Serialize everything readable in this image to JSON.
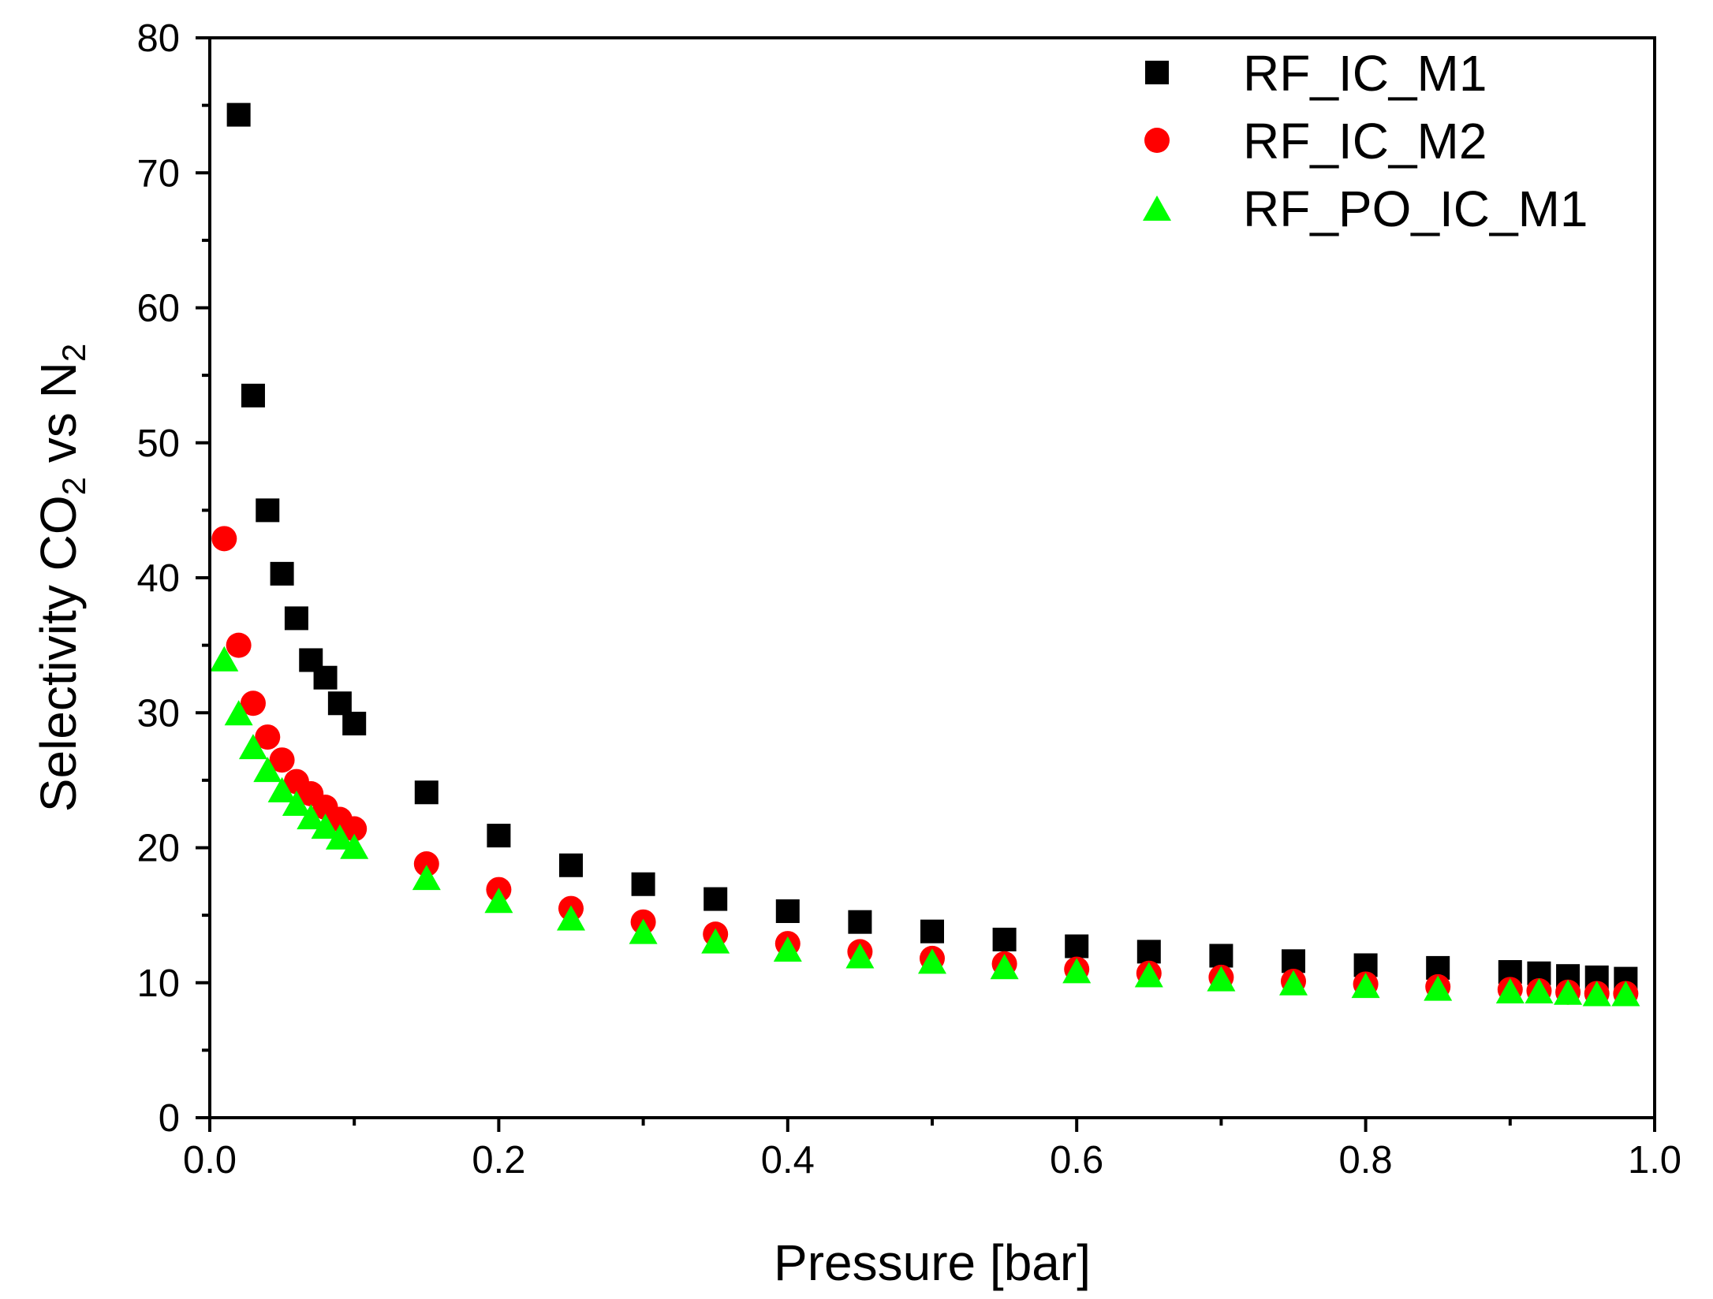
{
  "chart_data": {
    "type": "scatter",
    "title": "",
    "xlabel": "Pressure [bar]",
    "ylabel": {
      "prefix": "Selectivity CO",
      "sub1": "2",
      "middle": " vs N",
      "sub2": "2"
    },
    "xlim": [
      0.0,
      1.0
    ],
    "ylim": [
      0,
      80
    ],
    "xticks": [
      0.0,
      0.2,
      0.4,
      0.6,
      0.8,
      1.0
    ],
    "xtick_labels": [
      "0.0",
      "0.2",
      "0.4",
      "0.6",
      "0.8",
      "1.0"
    ],
    "yticks": [
      0,
      10,
      20,
      30,
      40,
      50,
      60,
      70,
      80
    ],
    "ytick_labels": [
      "0",
      "10",
      "20",
      "30",
      "40",
      "50",
      "60",
      "70",
      "80"
    ],
    "legend_position": "top-right",
    "grid": false,
    "series": [
      {
        "name": "RF_IC_M1",
        "marker": "square",
        "color": "#000000",
        "x": [
          0.02,
          0.03,
          0.04,
          0.05,
          0.06,
          0.07,
          0.08,
          0.09,
          0.1,
          0.15,
          0.2,
          0.25,
          0.3,
          0.35,
          0.4,
          0.45,
          0.5,
          0.55,
          0.6,
          0.65,
          0.7,
          0.75,
          0.8,
          0.85,
          0.9,
          0.92,
          0.94,
          0.96,
          0.98
        ],
        "y": [
          74.3,
          53.5,
          45.0,
          40.3,
          37.0,
          33.9,
          32.6,
          30.7,
          29.2,
          24.1,
          20.9,
          18.7,
          17.3,
          16.2,
          15.3,
          14.5,
          13.8,
          13.2,
          12.7,
          12.3,
          12.0,
          11.6,
          11.3,
          11.1,
          10.8,
          10.7,
          10.5,
          10.4,
          10.3
        ]
      },
      {
        "name": "RF_IC_M2",
        "marker": "circle",
        "color": "#ff0000",
        "x": [
          0.01,
          0.02,
          0.03,
          0.04,
          0.05,
          0.06,
          0.07,
          0.08,
          0.09,
          0.1,
          0.15,
          0.2,
          0.25,
          0.3,
          0.35,
          0.4,
          0.45,
          0.5,
          0.55,
          0.6,
          0.65,
          0.7,
          0.75,
          0.8,
          0.85,
          0.9,
          0.92,
          0.94,
          0.96,
          0.98
        ],
        "y": [
          42.9,
          35.0,
          30.7,
          28.2,
          26.5,
          24.9,
          24.0,
          23.0,
          22.1,
          21.4,
          18.8,
          16.9,
          15.5,
          14.5,
          13.6,
          12.9,
          12.3,
          11.8,
          11.4,
          11.0,
          10.7,
          10.4,
          10.1,
          9.9,
          9.7,
          9.5,
          9.4,
          9.3,
          9.2,
          9.2
        ]
      },
      {
        "name": "RF_PO_IC_M1",
        "marker": "triangle",
        "color": "#00ff00",
        "x": [
          0.01,
          0.02,
          0.03,
          0.04,
          0.05,
          0.06,
          0.07,
          0.08,
          0.09,
          0.1,
          0.15,
          0.2,
          0.25,
          0.3,
          0.35,
          0.4,
          0.45,
          0.5,
          0.55,
          0.6,
          0.65,
          0.7,
          0.75,
          0.8,
          0.85,
          0.9,
          0.92,
          0.94,
          0.96,
          0.98
        ],
        "y": [
          34.0,
          30.0,
          27.5,
          25.8,
          24.3,
          23.3,
          22.3,
          21.6,
          20.8,
          20.1,
          17.8,
          16.1,
          14.8,
          13.8,
          13.1,
          12.5,
          12.0,
          11.6,
          11.2,
          10.9,
          10.6,
          10.3,
          10.0,
          9.8,
          9.6,
          9.4,
          9.4,
          9.3,
          9.2,
          9.2
        ]
      }
    ]
  }
}
